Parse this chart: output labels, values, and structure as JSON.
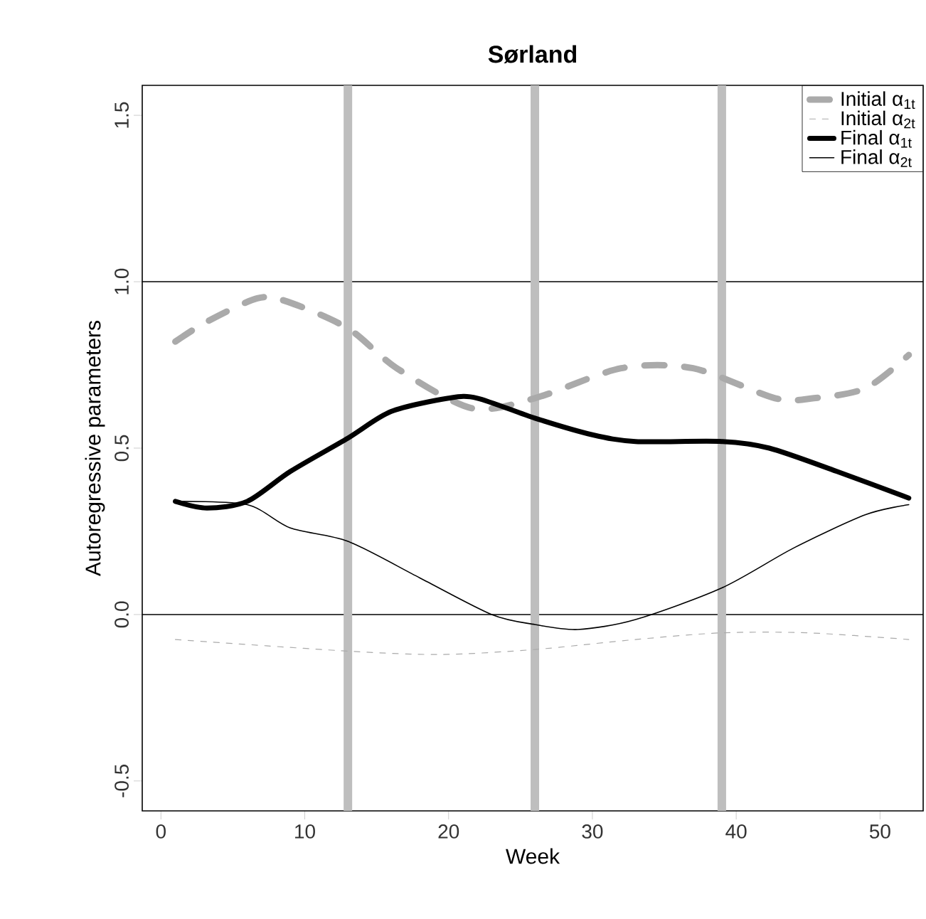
{
  "chart_data": {
    "type": "line",
    "title": "Sørland",
    "xlabel": "Week",
    "ylabel": "Autoregressive parameters",
    "xlim": [
      -1.3,
      53
    ],
    "ylim": [
      -0.59,
      1.59
    ],
    "xticks": [
      0,
      10,
      20,
      30,
      40,
      50
    ],
    "yticks": [
      {
        "value": -0.5,
        "label": "-0.5"
      },
      {
        "value": 0,
        "label": "0.0"
      },
      {
        "value": 0.5,
        "label": "0.5"
      },
      {
        "value": 1,
        "label": "1.0"
      },
      {
        "value": 1.5,
        "label": "1.5"
      }
    ],
    "legend": "top right",
    "grid": false,
    "ref_lines": [
      {
        "axis": "y",
        "value": 1,
        "color": "#000000"
      },
      {
        "axis": "y",
        "value": 0,
        "color": "#000000"
      },
      {
        "axis": "x",
        "value": 13,
        "color": "#bebebe"
      },
      {
        "axis": "x",
        "value": 26,
        "color": "#bebebe"
      },
      {
        "axis": "x",
        "value": 39,
        "color": "#bebebe"
      }
    ],
    "series": [
      {
        "name": "Initial α$_{1t}$",
        "color": "#aaaaaa",
        "line_style": "dashed",
        "x": [
          1,
          3.2,
          6.7,
          8.8,
          13,
          16.4,
          21.6,
          26,
          32,
          37,
          42.7,
          45.4,
          49,
          52
        ],
        "values": [
          0.82,
          0.88,
          0.95,
          0.94,
          0.86,
          0.74,
          0.62,
          0.65,
          0.74,
          0.74,
          0.65,
          0.65,
          0.68,
          0.78
        ]
      },
      {
        "name": "Initial α$_{2t}$",
        "color": "#aaaaaa",
        "line_style": "dashed",
        "x": [
          1,
          13,
          19.5,
          26,
          33,
          39,
          45,
          52
        ],
        "values": [
          -0.075,
          -0.11,
          -0.12,
          -0.105,
          -0.075,
          -0.055,
          -0.055,
          -0.075
        ]
      },
      {
        "name": "Final α$_{1t}$",
        "color": "#000000",
        "line_style": "solid",
        "x": [
          1,
          3.2,
          6,
          9,
          13,
          16,
          20,
          22,
          26,
          30,
          33,
          39,
          42.3,
          47,
          52
        ],
        "values": [
          0.34,
          0.32,
          0.34,
          0.43,
          0.53,
          0.61,
          0.65,
          0.65,
          0.59,
          0.54,
          0.52,
          0.52,
          0.5,
          0.43,
          0.35
        ]
      },
      {
        "name": "Final α$_{2t}$",
        "color": "#000000",
        "line_style": "solid",
        "x": [
          1,
          6,
          9,
          13,
          18,
          23,
          26,
          29,
          33,
          39,
          44,
          49,
          52
        ],
        "values": [
          0.34,
          0.33,
          0.26,
          0.22,
          0.11,
          0.0,
          -0.03,
          -0.045,
          -0.015,
          0.08,
          0.2,
          0.3,
          0.33
        ]
      }
    ]
  }
}
